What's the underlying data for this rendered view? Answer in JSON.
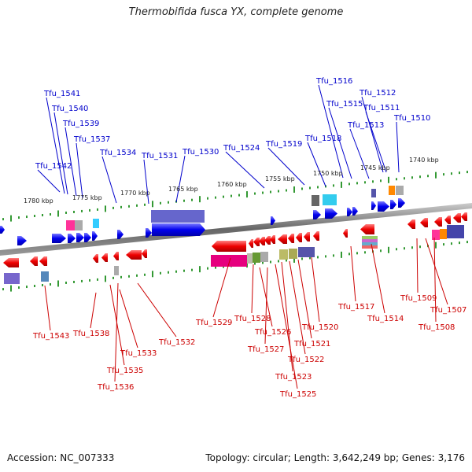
{
  "title": "Thermobifida fusca YX, complete genome",
  "footer": {
    "accession": "Accession: NC_007333",
    "topology": "Topology: circular; Length: 3,642,249 bp; Genes: 3,176"
  },
  "colors": {
    "forward_label": "#0000cc",
    "reverse_label": "#cc0000",
    "forward_gene": "#0000ee",
    "reverse_gene": "#ee0000",
    "forward_tick": "#339933",
    "backbone": "#888888"
  },
  "position_labels": [
    "1780 kbp",
    "1775 kbp",
    "1770 kbp",
    "1765 kbp",
    "1760 kbp",
    "1755 kbp",
    "1750 kbp",
    "1745 kbp",
    "1740 kbp"
  ],
  "forward_genes": [
    "Tfu_1542",
    "Tfu_1541",
    "Tfu_1540",
    "Tfu_1539",
    "Tfu_1537",
    "Tfu_1534",
    "Tfu_1531",
    "Tfu_1530",
    "Tfu_1524",
    "Tfu_1519",
    "Tfu_1518",
    "Tfu_1516",
    "Tfu_1515",
    "Tfu_1513",
    "Tfu_1512",
    "Tfu_1511",
    "Tfu_1510"
  ],
  "reverse_genes": [
    "Tfu_1543",
    "Tfu_1538",
    "Tfu_1535",
    "Tfu_1536",
    "Tfu_1533",
    "Tfu_1532",
    "Tfu_1529",
    "Tfu_1528",
    "Tfu_1526",
    "Tfu_1527",
    "Tfu_1525",
    "Tfu_1523",
    "Tfu_1522",
    "Tfu_1521",
    "Tfu_1520",
    "Tfu_1517",
    "Tfu_1514",
    "Tfu_1509",
    "Tfu_1507",
    "Tfu_1508"
  ]
}
